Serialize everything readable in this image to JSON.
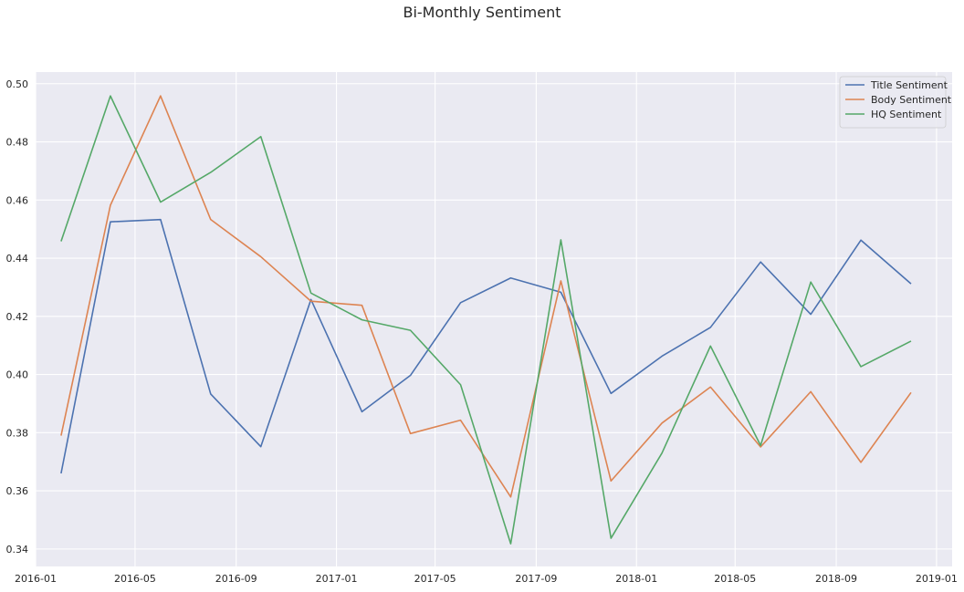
{
  "chart_data": {
    "type": "line",
    "title": "Bi-Monthly Sentiment",
    "xlabel": "",
    "ylabel": "",
    "x": [
      "2016-02-01",
      "2016-04-01",
      "2016-06-01",
      "2016-08-01",
      "2016-10-01",
      "2016-12-01",
      "2017-02-01",
      "2017-04-01",
      "2017-06-01",
      "2017-08-01",
      "2017-10-01",
      "2017-12-01",
      "2018-02-01",
      "2018-04-01",
      "2018-06-01",
      "2018-08-01",
      "2018-10-01",
      "2018-12-01"
    ],
    "xlim": [
      "2016-01-01",
      "2019-01-20"
    ],
    "xticks": [
      {
        "date": "2016-01-01",
        "label": "2016-01"
      },
      {
        "date": "2016-05-01",
        "label": "2016-05"
      },
      {
        "date": "2016-09-01",
        "label": "2016-09"
      },
      {
        "date": "2017-01-01",
        "label": "2017-01"
      },
      {
        "date": "2017-05-01",
        "label": "2017-05"
      },
      {
        "date": "2017-09-01",
        "label": "2017-09"
      },
      {
        "date": "2018-01-01",
        "label": "2018-01"
      },
      {
        "date": "2018-05-01",
        "label": "2018-05"
      },
      {
        "date": "2018-09-01",
        "label": "2018-09"
      },
      {
        "date": "2019-01-01",
        "label": "2019-01"
      }
    ],
    "ylim": [
      0.334,
      0.504
    ],
    "yticks": [
      0.34,
      0.36,
      0.38,
      0.4,
      0.42,
      0.44,
      0.46,
      0.48,
      0.5
    ],
    "ytick_labels": [
      "0.34",
      "0.36",
      "0.38",
      "0.40",
      "0.42",
      "0.44",
      "0.46",
      "0.48",
      "0.50"
    ],
    "grid": true,
    "legend_position": "top-right",
    "background": "#eaeaf2",
    "series": [
      {
        "name": "Title Sentiment",
        "color": "#4c72b0",
        "values": [
          0.366,
          0.4525,
          0.4533,
          0.3933,
          0.3752,
          0.4258,
          0.3872,
          0.3997,
          0.4247,
          0.4332,
          0.4283,
          0.3935,
          0.4063,
          0.4162,
          0.4387,
          0.4207,
          0.4462,
          0.4312
        ]
      },
      {
        "name": "Body Sentiment",
        "color": "#dd8452",
        "values": [
          0.379,
          0.4582,
          0.4958,
          0.4533,
          0.4405,
          0.4252,
          0.4238,
          0.3797,
          0.3843,
          0.3579,
          0.4322,
          0.3634,
          0.3833,
          0.3957,
          0.3751,
          0.3941,
          0.3698,
          0.3938
        ]
      },
      {
        "name": "HQ Sentiment",
        "color": "#55a868",
        "values": [
          0.4458,
          0.4958,
          0.4593,
          0.4695,
          0.4818,
          0.428,
          0.4188,
          0.4152,
          0.3965,
          0.3418,
          0.4463,
          0.3437,
          0.373,
          0.4098,
          0.3756,
          0.4318,
          0.4027,
          0.4115
        ]
      }
    ]
  }
}
